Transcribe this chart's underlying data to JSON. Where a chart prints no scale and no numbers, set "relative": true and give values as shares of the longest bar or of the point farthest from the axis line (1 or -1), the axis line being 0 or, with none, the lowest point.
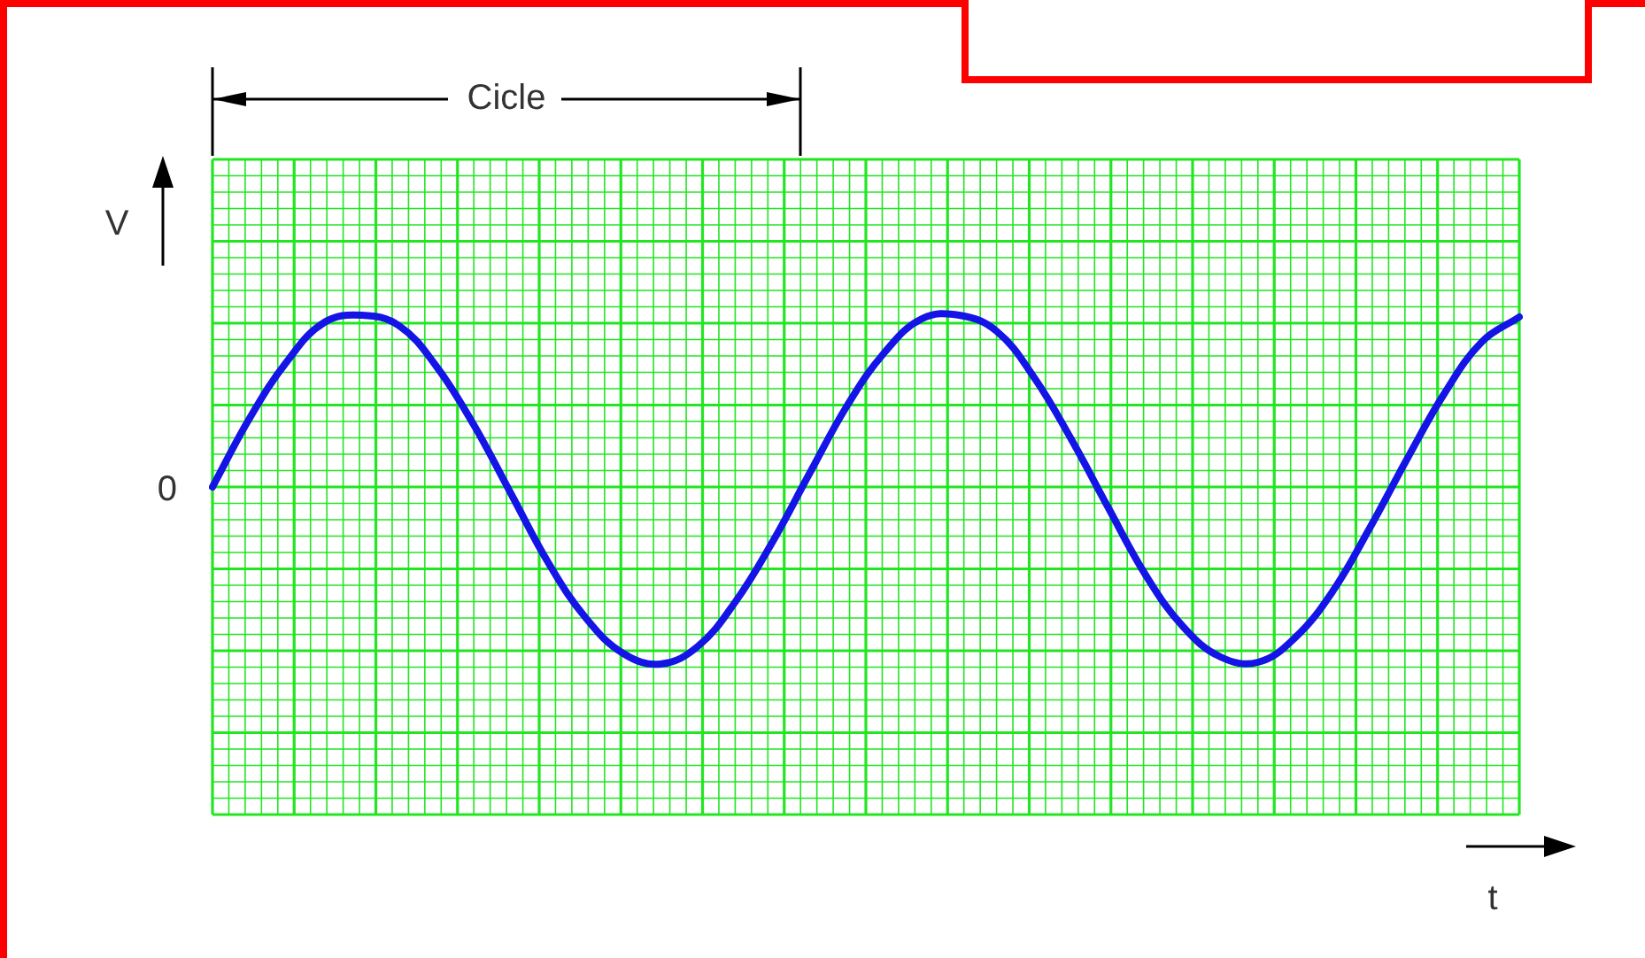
{
  "chart_data": {
    "type": "line",
    "relative": true,
    "ylabel": "V",
    "annotations": [
      "Cicle",
      "0",
      "t"
    ],
    "categories": [
      null,
      null,
      null,
      null,
      null,
      null,
      null,
      null,
      null,
      null,
      null,
      null,
      null,
      null,
      null,
      null,
      null,
      null,
      null,
      null,
      null,
      null,
      null,
      null,
      null,
      null,
      null,
      null,
      null,
      null,
      null,
      null,
      null,
      null,
      null,
      null
    ],
    "series": [
      {
        "color": "#1414e6",
        "values": [
          0,
          0.39,
          0.71,
          0.93,
          0.97,
          0.91,
          0.68,
          0.35,
          -0.04,
          -0.43,
          -0.74,
          -0.94,
          -1,
          -0.9,
          -0.65,
          -0.31,
          0.08,
          0.46,
          0.76,
          0.95,
          0.97,
          0.88,
          0.62,
          0.27,
          -0.12,
          -0.5,
          -0.79,
          -0.96,
          -0.99,
          -0.85,
          -0.59,
          -0.23,
          0.16,
          0.53,
          0.82,
          0.96
        ]
      }
    ],
    "grid": true,
    "legend": false,
    "marker": "none",
    "line_style": "solid"
  }
}
